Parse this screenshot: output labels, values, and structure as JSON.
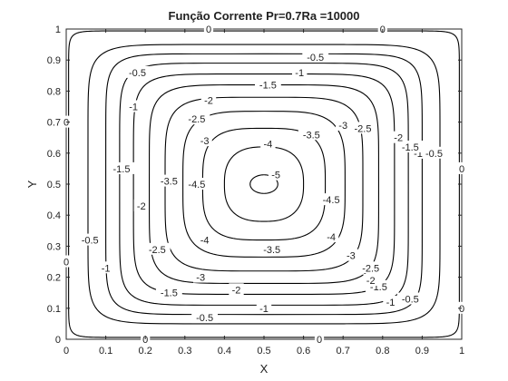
{
  "chart_data": {
    "type": "contour",
    "title": "Função Corrente Pr=0.7Ra =10000",
    "xlabel": "X",
    "ylabel": "Y",
    "xlim": [
      0,
      1
    ],
    "ylim": [
      0,
      1
    ],
    "xticks": [
      0,
      0.1,
      0.2,
      0.3,
      0.4,
      0.5,
      0.6,
      0.7,
      0.8,
      0.9,
      1
    ],
    "yticks": [
      0,
      0.1,
      0.2,
      0.3,
      0.4,
      0.5,
      0.6,
      0.7,
      0.8,
      0.9,
      1
    ],
    "xtick_labels": [
      "0",
      "0.1",
      "0.2",
      "0.3",
      "0.4",
      "0.5",
      "0.6",
      "0.7",
      "0.8",
      "0.9",
      "1"
    ],
    "ytick_labels": [
      "0",
      "0.1",
      "0.2",
      "0.3",
      "0.4",
      "0.5",
      "0.6",
      "0.7",
      "0.8",
      "0.9",
      "1"
    ],
    "grid": false,
    "line_color": "#000000",
    "center": [
      0.5,
      0.5
    ],
    "levels": [
      {
        "value": 0,
        "rx": 0.494,
        "ry": 0.494,
        "n": 26
      },
      {
        "value": -0.5,
        "rx": 0.445,
        "ry": 0.45,
        "n": 9
      },
      {
        "value": -1,
        "rx": 0.4,
        "ry": 0.42,
        "n": 9
      },
      {
        "value": -1.5,
        "rx": 0.365,
        "ry": 0.39,
        "n": 8
      },
      {
        "value": -2,
        "rx": 0.33,
        "ry": 0.355,
        "n": 7
      },
      {
        "value": -2.5,
        "rx": 0.29,
        "ry": 0.32,
        "n": 6
      },
      {
        "value": -3,
        "rx": 0.25,
        "ry": 0.28,
        "n": 5
      },
      {
        "value": -3.5,
        "rx": 0.205,
        "ry": 0.235,
        "n": 4
      },
      {
        "value": -4,
        "rx": 0.155,
        "ry": 0.18,
        "n": 3.4
      },
      {
        "value": -4.5,
        "rx": 0.1,
        "ry": 0.12,
        "n": 2.6
      },
      {
        "value": -5,
        "rx": 0.035,
        "ry": 0.03,
        "n": 2
      }
    ],
    "contour_labels": [
      {
        "text": "0",
        "x": 0.36,
        "y": 1.0
      },
      {
        "text": "0",
        "x": 0.8,
        "y": 1.0
      },
      {
        "text": "0",
        "x": 0.0,
        "y": 0.7
      },
      {
        "text": "0",
        "x": 0.0,
        "y": 0.25
      },
      {
        "text": "0",
        "x": 1.0,
        "y": 0.55
      },
      {
        "text": "0",
        "x": 1.0,
        "y": 0.1
      },
      {
        "text": "0",
        "x": 0.2,
        "y": 0.0
      },
      {
        "text": "0",
        "x": 0.64,
        "y": 0.0
      },
      {
        "text": "-0.5",
        "x": 0.63,
        "y": 0.91
      },
      {
        "text": "-0.5",
        "x": 0.18,
        "y": 0.86
      },
      {
        "text": "-0.5",
        "x": 0.93,
        "y": 0.6
      },
      {
        "text": "-0.5",
        "x": 0.06,
        "y": 0.32
      },
      {
        "text": "-0.5",
        "x": 0.35,
        "y": 0.07
      },
      {
        "text": "-0.5",
        "x": 0.87,
        "y": 0.13
      },
      {
        "text": "-1",
        "x": 0.59,
        "y": 0.86
      },
      {
        "text": "-1",
        "x": 0.17,
        "y": 0.75
      },
      {
        "text": "-1",
        "x": 0.89,
        "y": 0.6
      },
      {
        "text": "-1",
        "x": 0.1,
        "y": 0.23
      },
      {
        "text": "-1",
        "x": 0.5,
        "y": 0.1
      },
      {
        "text": "-1",
        "x": 0.82,
        "y": 0.12
      },
      {
        "text": "-1.5",
        "x": 0.51,
        "y": 0.82
      },
      {
        "text": "-1.5",
        "x": 0.14,
        "y": 0.55
      },
      {
        "text": "-1.5",
        "x": 0.87,
        "y": 0.62
      },
      {
        "text": "-1.5",
        "x": 0.26,
        "y": 0.15
      },
      {
        "text": "-1.5",
        "x": 0.79,
        "y": 0.17
      },
      {
        "text": "-2",
        "x": 0.36,
        "y": 0.77
      },
      {
        "text": "-2",
        "x": 0.84,
        "y": 0.65
      },
      {
        "text": "-2",
        "x": 0.19,
        "y": 0.43
      },
      {
        "text": "-2",
        "x": 0.43,
        "y": 0.16
      },
      {
        "text": "-2",
        "x": 0.77,
        "y": 0.19
      },
      {
        "text": "-2.5",
        "x": 0.33,
        "y": 0.71
      },
      {
        "text": "-2.5",
        "x": 0.75,
        "y": 0.68
      },
      {
        "text": "-2.5",
        "x": 0.23,
        "y": 0.29
      },
      {
        "text": "-2.5",
        "x": 0.77,
        "y": 0.23
      },
      {
        "text": "-3",
        "x": 0.35,
        "y": 0.64
      },
      {
        "text": "-3",
        "x": 0.7,
        "y": 0.69
      },
      {
        "text": "-3",
        "x": 0.34,
        "y": 0.2
      },
      {
        "text": "-3",
        "x": 0.72,
        "y": 0.27
      },
      {
        "text": "-3.5",
        "x": 0.62,
        "y": 0.66
      },
      {
        "text": "-3.5",
        "x": 0.26,
        "y": 0.51
      },
      {
        "text": "-3.5",
        "x": 0.52,
        "y": 0.29
      },
      {
        "text": "-4",
        "x": 0.51,
        "y": 0.63
      },
      {
        "text": "-4",
        "x": 0.35,
        "y": 0.32
      },
      {
        "text": "-4",
        "x": 0.67,
        "y": 0.33
      },
      {
        "text": "-4.5",
        "x": 0.33,
        "y": 0.5
      },
      {
        "text": "-4.5",
        "x": 0.67,
        "y": 0.45
      },
      {
        "text": "-5",
        "x": 0.53,
        "y": 0.53
      }
    ]
  }
}
